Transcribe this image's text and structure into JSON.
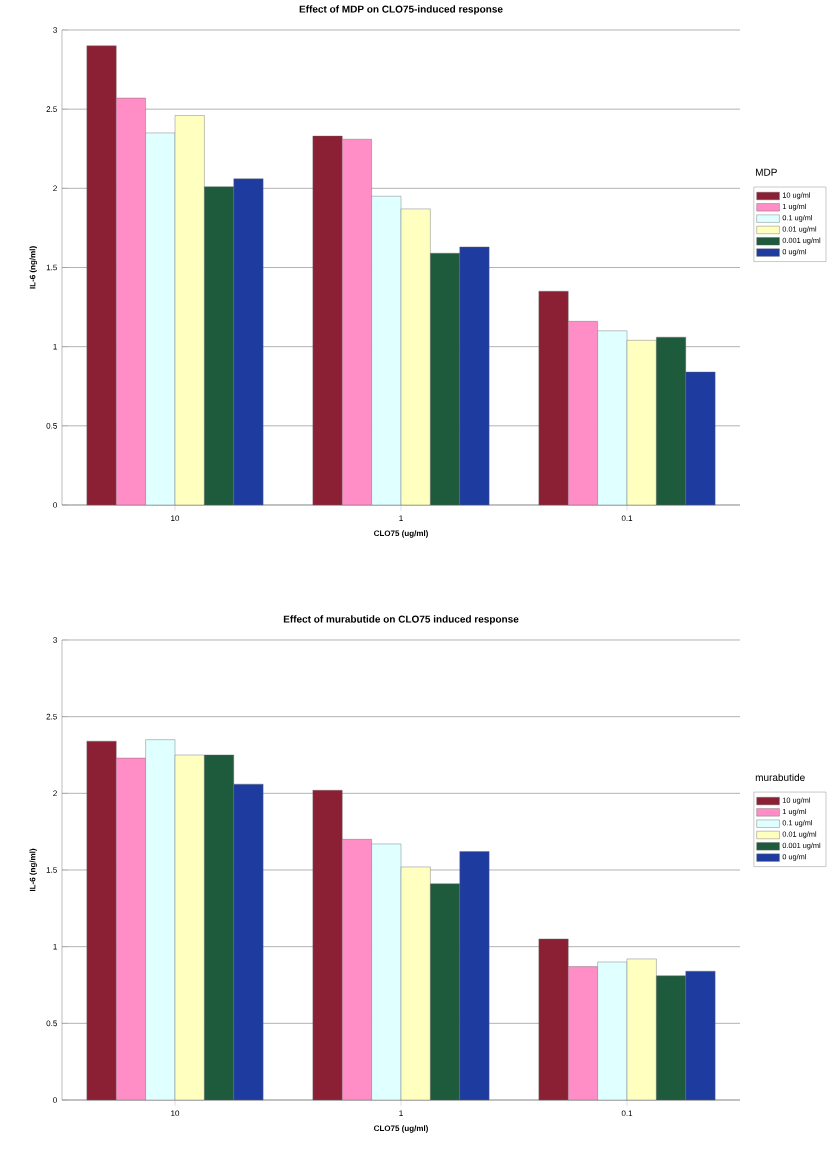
{
  "chart_data": [
    {
      "type": "bar",
      "title": "Effect of MDP on CLO75-induced response",
      "xlabel": "CLO75 (ug/ml)",
      "ylabel": "IL-6 (ng/ml)",
      "legend_title": "MDP",
      "categories": [
        "10",
        "1",
        "0.1"
      ],
      "ylim": [
        0,
        3
      ],
      "yticks": [
        0,
        0.5,
        1,
        1.5,
        2,
        2.5,
        3
      ],
      "grid": "y",
      "legend": "right",
      "series": [
        {
          "name": "10 ug/ml",
          "color": "#8b2035",
          "values": [
            2.9,
            2.33,
            1.35
          ]
        },
        {
          "name": "1 ug/ml",
          "color": "#ff8ec6",
          "values": [
            2.57,
            2.31,
            1.16
          ]
        },
        {
          "name": "0.1 ug/ml",
          "color": "#e0ffff",
          "values": [
            2.35,
            1.95,
            1.1
          ]
        },
        {
          "name": "0.01 ug/ml",
          "color": "#ffffc0",
          "values": [
            2.46,
            1.87,
            1.04
          ]
        },
        {
          "name": "0.001 ug/ml",
          "color": "#1e5a3c",
          "values": [
            2.01,
            1.59,
            1.06
          ]
        },
        {
          "name": "0 ug/ml",
          "color": "#1e3ca0",
          "values": [
            2.06,
            1.63,
            0.84
          ]
        }
      ]
    },
    {
      "type": "bar",
      "title": "Effect of murabutide on CLO75 induced response",
      "xlabel": "CLO75 (ug/ml)",
      "ylabel": "IL-6 (ng/ml)",
      "legend_title": "murabutide",
      "categories": [
        "10",
        "1",
        "0.1"
      ],
      "ylim": [
        0,
        3
      ],
      "yticks": [
        0,
        0.5,
        1,
        1.5,
        2,
        2.5,
        3
      ],
      "grid": "y",
      "legend": "right",
      "series": [
        {
          "name": "10 ug/ml",
          "color": "#8b2035",
          "values": [
            2.34,
            2.02,
            1.05
          ]
        },
        {
          "name": "1 ug/ml",
          "color": "#ff8ec6",
          "values": [
            2.23,
            1.7,
            0.87
          ]
        },
        {
          "name": "0.1 ug/ml",
          "color": "#e0ffff",
          "values": [
            2.35,
            1.67,
            0.9
          ]
        },
        {
          "name": "0.01 ug/ml",
          "color": "#ffffc0",
          "values": [
            2.25,
            1.52,
            0.92
          ]
        },
        {
          "name": "0.001 ug/ml",
          "color": "#1e5a3c",
          "values": [
            2.25,
            1.41,
            0.81
          ]
        },
        {
          "name": "0 ug/ml",
          "color": "#1e3ca0",
          "values": [
            2.06,
            1.62,
            0.84
          ]
        }
      ]
    }
  ]
}
